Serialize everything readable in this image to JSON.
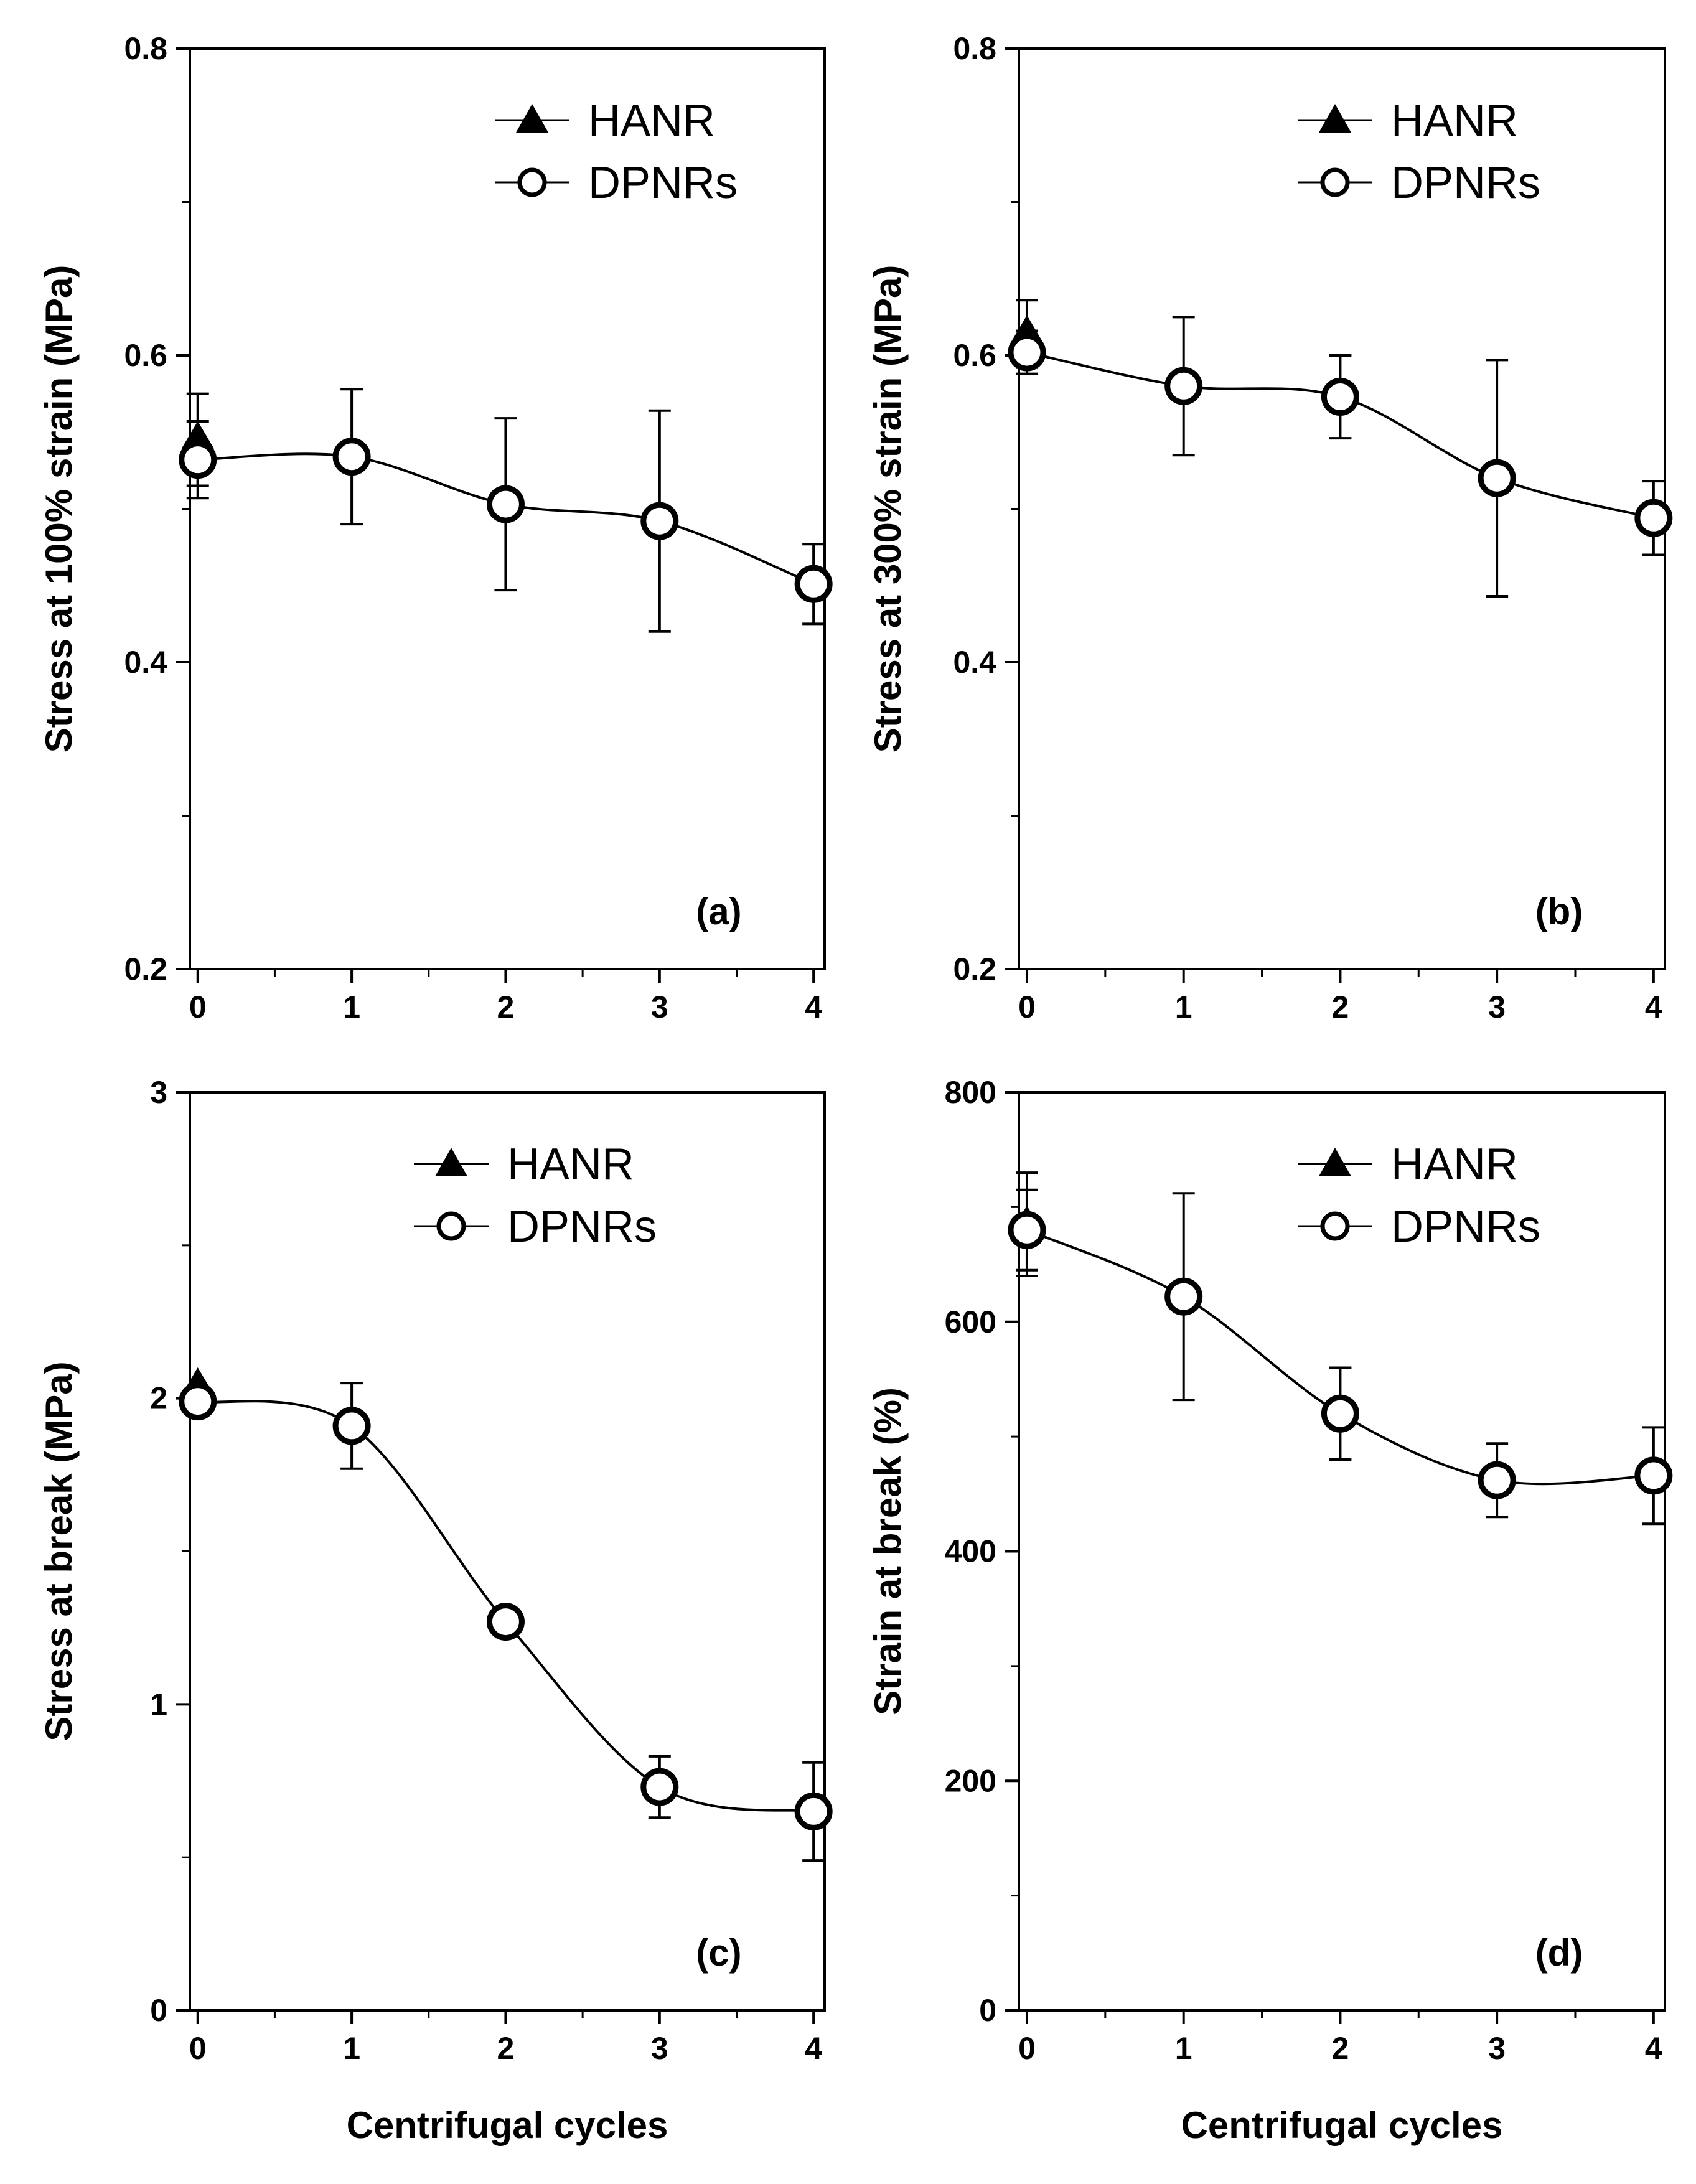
{
  "chart_data": [
    {
      "type": "line",
      "panel_label": "(a)",
      "xlabel": "",
      "ylabel": "Stress at 100% strain (MPa)",
      "xlim": [
        0,
        4
      ],
      "ylim": [
        0.2,
        0.8
      ],
      "xticks": [
        0,
        1,
        2,
        3,
        4
      ],
      "xtick_labels": [
        "0",
        "1",
        "2",
        "3",
        "4"
      ],
      "yticks": [
        0.2,
        0.4,
        0.6,
        0.8
      ],
      "ytick_labels": [
        "0.2",
        "0.4",
        "0.6",
        "0.8"
      ],
      "legend_position": "top-right",
      "series": [
        {
          "name": "HANR",
          "marker": "filled-triangle",
          "x": [
            0
          ],
          "y": [
            0.545
          ],
          "err": [
            0.03
          ]
        },
        {
          "name": "DPNRs",
          "marker": "open-circle",
          "x": [
            0,
            1,
            2,
            3,
            4
          ],
          "y": [
            0.532,
            0.534,
            0.503,
            0.492,
            0.451
          ],
          "err": [
            0.025,
            0.044,
            0.056,
            0.072,
            0.026
          ]
        }
      ]
    },
    {
      "type": "line",
      "panel_label": "(b)",
      "xlabel": "",
      "ylabel": "Stress at 300% strain (MPa)",
      "xlim": [
        0,
        4
      ],
      "ylim": [
        0.2,
        0.8
      ],
      "xticks": [
        0,
        1,
        2,
        3,
        4
      ],
      "xtick_labels": [
        "0",
        "1",
        "2",
        "3",
        "4"
      ],
      "yticks": [
        0.2,
        0.4,
        0.6,
        0.8
      ],
      "ytick_labels": [
        "0.2",
        "0.4",
        "0.6",
        "0.8"
      ],
      "legend_position": "top-right",
      "series": [
        {
          "name": "HANR",
          "marker": "filled-triangle",
          "x": [
            0
          ],
          "y": [
            0.614
          ],
          "err": [
            0.022
          ]
        },
        {
          "name": "DPNRs",
          "marker": "open-circle",
          "x": [
            0,
            1,
            2,
            3,
            4
          ],
          "y": [
            0.602,
            0.58,
            0.573,
            0.52,
            0.494
          ],
          "err": [
            0.014,
            0.045,
            0.027,
            0.077,
            0.024
          ]
        }
      ]
    },
    {
      "type": "line",
      "panel_label": "(c)",
      "xlabel": "Centrifugal cycles",
      "ylabel": "Stress at break (MPa)",
      "xlim": [
        0,
        4
      ],
      "ylim": [
        0,
        3
      ],
      "xticks": [
        0,
        1,
        2,
        3,
        4
      ],
      "xtick_labels": [
        "0",
        "1",
        "2",
        "3",
        "4"
      ],
      "yticks": [
        0,
        1,
        2,
        3
      ],
      "ytick_labels": [
        "0",
        "1",
        "2",
        "3"
      ],
      "legend_position": "top-right",
      "series": [
        {
          "name": "HANR",
          "marker": "filled-triangle",
          "x": [
            0
          ],
          "y": [
            2.04
          ],
          "err": [
            0.0
          ]
        },
        {
          "name": "DPNRs",
          "marker": "open-circle",
          "x": [
            0,
            1,
            2,
            3,
            4
          ],
          "y": [
            1.99,
            1.91,
            1.27,
            0.73,
            0.65
          ],
          "err": [
            0.0,
            0.14,
            0.0,
            0.1,
            0.16
          ]
        }
      ]
    },
    {
      "type": "line",
      "panel_label": "(d)",
      "xlabel": "Centrifugal cycles",
      "ylabel": "Strain at break (%)",
      "xlim": [
        0,
        4
      ],
      "ylim": [
        0,
        800
      ],
      "xticks": [
        0,
        1,
        2,
        3,
        4
      ],
      "xtick_labels": [
        "0",
        "1",
        "2",
        "3",
        "4"
      ],
      "yticks": [
        0,
        200,
        400,
        600,
        800
      ],
      "ytick_labels": [
        "0",
        "200",
        "400",
        "600",
        "800"
      ],
      "legend_position": "top-right",
      "series": [
        {
          "name": "HANR",
          "marker": "filled-triangle",
          "x": [
            0
          ],
          "y": [
            685
          ],
          "err": [
            45
          ]
        },
        {
          "name": "DPNRs",
          "marker": "open-circle",
          "x": [
            0,
            1,
            2,
            3,
            4
          ],
          "y": [
            680,
            622,
            520,
            462,
            466
          ],
          "err": [
            35,
            90,
            40,
            32,
            42
          ]
        }
      ]
    }
  ]
}
